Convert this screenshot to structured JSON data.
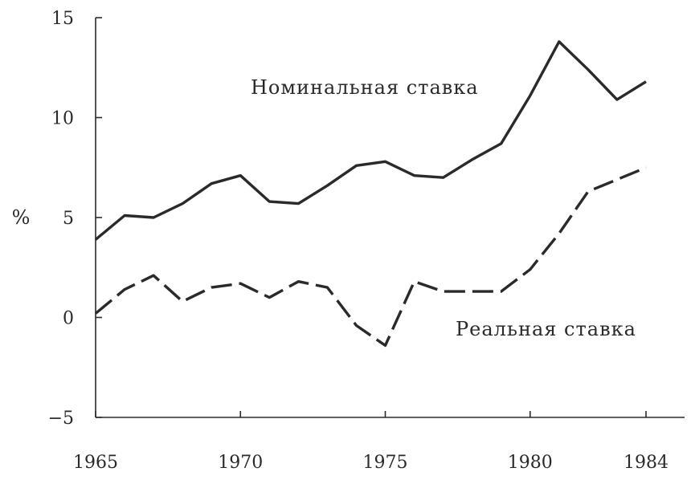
{
  "chart_data": {
    "type": "line",
    "ylabel": "%",
    "ylim": [
      -5,
      15
    ],
    "xlim": [
      1965,
      1984
    ],
    "yticks": [
      -5,
      0,
      5,
      10,
      15
    ],
    "ytick_labels": [
      "−5",
      "0",
      "5",
      "10",
      "15"
    ],
    "xticks": [
      1965,
      1970,
      1975,
      1980,
      1984
    ],
    "xtick_labels": [
      "1965",
      "1970",
      "1975",
      "1980",
      "1984"
    ],
    "grid": false,
    "legend": "none",
    "series": [
      {
        "name": "Номинальная ставка",
        "style": "solid",
        "color": "#2a2a2a",
        "x": [
          1965,
          1966,
          1967,
          1968,
          1969,
          1970,
          1971,
          1972,
          1973,
          1974,
          1975,
          1976,
          1977,
          1978,
          1979,
          1980,
          1981,
          1982,
          1983,
          1984
        ],
        "values": [
          3.9,
          5.1,
          5.0,
          5.7,
          6.7,
          7.1,
          5.8,
          5.7,
          6.6,
          7.6,
          7.8,
          7.1,
          7.0,
          7.9,
          8.7,
          11.1,
          13.8,
          12.4,
          10.9,
          11.8
        ]
      },
      {
        "name": "Реальная ставка",
        "style": "dashed",
        "color": "#2a2a2a",
        "x": [
          1965,
          1966,
          1967,
          1968,
          1969,
          1970,
          1971,
          1972,
          1973,
          1974,
          1975,
          1976,
          1977,
          1978,
          1979,
          1980,
          1981,
          1982,
          1983,
          1984
        ],
        "values": [
          0.2,
          1.4,
          2.1,
          0.8,
          1.5,
          1.7,
          1.0,
          1.8,
          1.5,
          -0.4,
          -1.4,
          1.8,
          1.3,
          1.3,
          1.3,
          2.4,
          4.2,
          6.3,
          6.9,
          7.5
        ]
      }
    ]
  }
}
